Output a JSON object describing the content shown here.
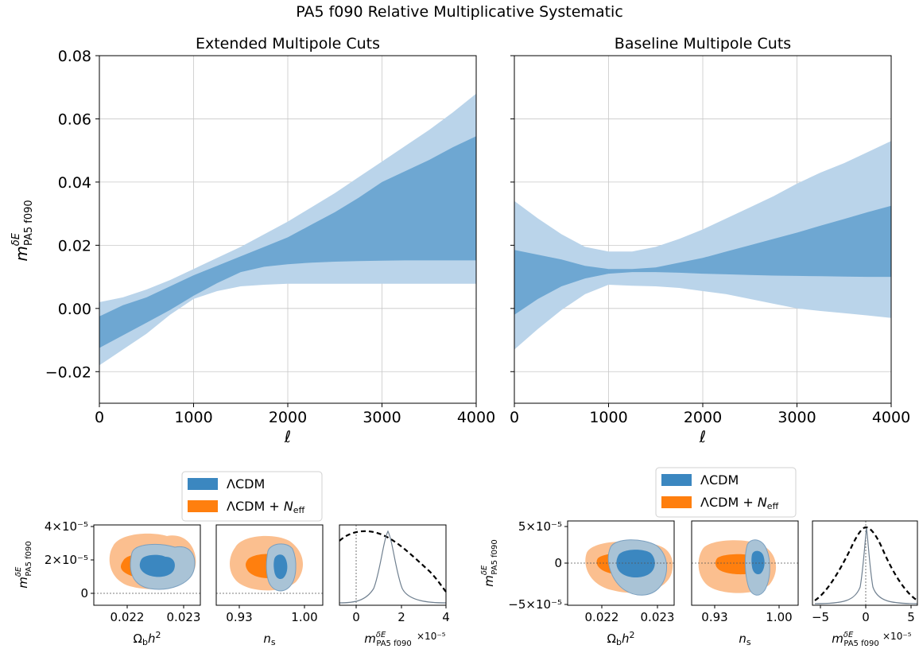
{
  "figure": {
    "title": "PA5 f090 Relative Multiplicative Systematic",
    "colors": {
      "lcdm": "#3b87c0",
      "band_inner": "#6ea7d2",
      "band_outer": "#bad4ea",
      "lcdm_fill_2sig": "#a9c3d6",
      "neff_1sig": "#ff7f0e",
      "neff_2sig": "#fbbf8f",
      "grid": "#c8c8c8",
      "dashed_line": "#000000",
      "solid_line": "#708090"
    }
  },
  "chart_data": [
    {
      "id": "extended",
      "type": "area",
      "title": "Extended Multipole Cuts",
      "xlabel": "ℓ",
      "ylabel": "m_PA5 f090^δE",
      "ylabel_main": "m",
      "ylabel_sup": "δE",
      "ylabel_sub": "PA5 f090",
      "xlim": [
        0,
        4000
      ],
      "ylim": [
        -0.03,
        0.08
      ],
      "xticks": [
        0,
        1000,
        2000,
        3000,
        4000
      ],
      "xtick_labels": [
        "0",
        "1000",
        "2000",
        "3000",
        "4000"
      ],
      "yticks": [
        -0.02,
        0.0,
        0.02,
        0.04,
        0.06,
        0.08
      ],
      "ytick_labels": [
        "−0.02",
        "0.00",
        "0.02",
        "0.04",
        "0.06",
        "0.08"
      ],
      "grid": true,
      "x": [
        0,
        250,
        500,
        750,
        1000,
        1250,
        1500,
        1750,
        2000,
        2250,
        2500,
        2750,
        3000,
        3250,
        3500,
        3750,
        4000
      ],
      "series": [
        {
          "band": "outer",
          "lower": [
            -0.018,
            -0.013,
            -0.008,
            -0.002,
            0.003,
            0.0055,
            0.007,
            0.0075,
            0.0078,
            0.0078,
            0.0078,
            0.0078,
            0.0078,
            0.0078,
            0.0078,
            0.0078,
            0.0078
          ],
          "upper": [
            0.002,
            0.0035,
            0.006,
            0.009,
            0.0125,
            0.016,
            0.0195,
            0.0235,
            0.0275,
            0.032,
            0.0365,
            0.0415,
            0.0465,
            0.0515,
            0.0565,
            0.062,
            0.068
          ]
        },
        {
          "band": "inner",
          "lower": [
            -0.0125,
            -0.0085,
            -0.0045,
            -0.0005,
            0.004,
            0.008,
            0.0115,
            0.0132,
            0.014,
            0.0145,
            0.0148,
            0.015,
            0.0151,
            0.0152,
            0.0152,
            0.0152,
            0.0152
          ],
          "upper": [
            -0.0025,
            0.001,
            0.0035,
            0.007,
            0.0105,
            0.0135,
            0.0165,
            0.0195,
            0.0225,
            0.0265,
            0.0305,
            0.035,
            0.04,
            0.0435,
            0.047,
            0.051,
            0.0545
          ]
        }
      ]
    },
    {
      "id": "baseline",
      "type": "area",
      "title": "Baseline Multipole Cuts",
      "xlabel": "ℓ",
      "xlim": [
        0,
        4000
      ],
      "ylim": [
        -0.03,
        0.08
      ],
      "xticks": [
        0,
        1000,
        2000,
        3000,
        4000
      ],
      "xtick_labels": [
        "0",
        "1000",
        "2000",
        "3000",
        "4000"
      ],
      "yticks": [
        -0.02,
        0.0,
        0.02,
        0.04,
        0.06,
        0.08
      ],
      "grid": true,
      "x": [
        0,
        250,
        500,
        750,
        1000,
        1250,
        1500,
        1750,
        2000,
        2250,
        2500,
        2750,
        3000,
        3250,
        3500,
        3750,
        4000
      ],
      "series": [
        {
          "band": "outer",
          "lower": [
            -0.013,
            -0.0065,
            -0.0005,
            0.0045,
            0.0075,
            0.0072,
            0.007,
            0.0065,
            0.0055,
            0.0045,
            0.003,
            0.0015,
            0.0,
            -0.0008,
            -0.0015,
            -0.0022,
            -0.003
          ],
          "upper": [
            0.034,
            0.0285,
            0.0235,
            0.0195,
            0.018,
            0.018,
            0.0195,
            0.022,
            0.025,
            0.0285,
            0.032,
            0.0355,
            0.0395,
            0.043,
            0.046,
            0.0495,
            0.053
          ]
        },
        {
          "band": "inner",
          "lower": [
            -0.002,
            0.003,
            0.007,
            0.0095,
            0.011,
            0.0115,
            0.0115,
            0.0113,
            0.011,
            0.0108,
            0.0106,
            0.0104,
            0.0103,
            0.0102,
            0.0101,
            0.01,
            0.01
          ],
          "upper": [
            0.0185,
            0.017,
            0.0155,
            0.0135,
            0.0125,
            0.0125,
            0.013,
            0.0145,
            0.016,
            0.018,
            0.02,
            0.022,
            0.024,
            0.0262,
            0.0283,
            0.0305,
            0.0325
          ]
        }
      ]
    },
    {
      "id": "ext-ombh2",
      "type": "contour",
      "xlabel": "Ω_b h^2",
      "xticks": [
        0.022,
        0.023
      ],
      "xtick_labels": [
        "0.022",
        "0.023"
      ],
      "yticks": [
        0,
        2e-05,
        4e-05
      ],
      "ytick_labels": [
        "0",
        "2×10⁻⁵",
        "4×10⁻⁵"
      ],
      "ylabel": "m_PA5 f090^δE",
      "lcdm": {
        "center": [
          0.02255,
          1.4e-05
        ]
      },
      "lcdm_neff": {
        "center": [
          0.02245,
          1.4e-05
        ]
      }
    },
    {
      "id": "ext-ns",
      "type": "contour",
      "xlabel": "n_s",
      "xticks": [
        0.93,
        1.0
      ],
      "xtick_labels": [
        "0.93",
        "1.00"
      ]
    },
    {
      "id": "ext-1d",
      "type": "line",
      "xlabel": "m_PA5 f090^δE",
      "offset_text": "×10⁻⁵",
      "xticks": [
        0,
        2,
        4
      ],
      "xtick_labels": [
        "0",
        "2",
        "4"
      ]
    },
    {
      "id": "base-ombh2",
      "type": "contour",
      "xlabel": "Ω_b h^2",
      "xticks": [
        0.022,
        0.023
      ],
      "xtick_labels": [
        "0.022",
        "0.023"
      ],
      "yticks": [
        -5e-05,
        0,
        5e-05
      ],
      "ytick_labels": [
        "−5×10⁻⁵",
        "0",
        "5×10⁻⁵"
      ],
      "ylabel": "m_PA5 f090^δE"
    },
    {
      "id": "base-ns",
      "type": "contour",
      "xlabel": "n_s",
      "xticks": [
        0.93,
        1.0
      ],
      "xtick_labels": [
        "0.93",
        "1.00"
      ]
    },
    {
      "id": "base-1d",
      "type": "line",
      "xlabel": "m_PA5 f090^δE",
      "offset_text": "×10⁻⁵",
      "xticks": [
        -5,
        0,
        5
      ],
      "xtick_labels": [
        "−5",
        "0",
        "5"
      ]
    }
  ],
  "legend": {
    "entries": [
      {
        "label": "ΛCDM",
        "color": "#3b87c0"
      },
      {
        "label": "ΛCDM + N_eff",
        "color": "#ff7f0e"
      }
    ],
    "label_main_2": "ΛCDM + ",
    "label_var_2": "N",
    "label_sub_2": "eff"
  }
}
